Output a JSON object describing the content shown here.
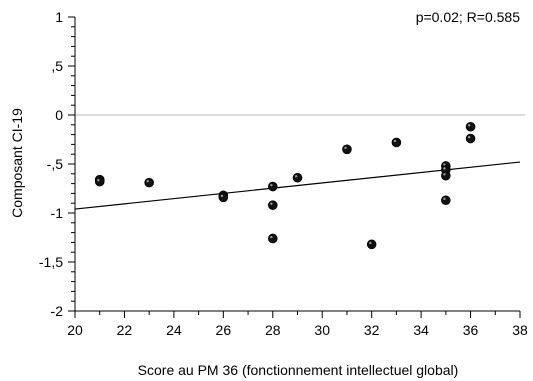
{
  "chart_data": {
    "type": "scatter",
    "annotation": "p=0.02; R=0.585",
    "xlabel": "Score au PM 36 (fonctionnement intellectuel global)",
    "ylabel": "Composant CI-19",
    "xlim": [
      20,
      38
    ],
    "ylim": [
      -2,
      1
    ],
    "x_ticks": [
      20,
      22,
      24,
      26,
      28,
      30,
      32,
      34,
      36,
      38
    ],
    "x_tick_labels": [
      "20",
      "22",
      "24",
      "26",
      "28",
      "30",
      "32",
      "34",
      "36",
      "38"
    ],
    "y_ticks": [
      1,
      0.5,
      0,
      -0.5,
      -1,
      -1.5,
      -2
    ],
    "y_tick_labels": [
      "1",
      ",5",
      "0",
      "-,5",
      "-1",
      "-1,5",
      "-2"
    ],
    "reference_line_y": 0,
    "regression_line": {
      "x": [
        20,
        38
      ],
      "y": [
        -0.96,
        -0.48
      ]
    },
    "points": [
      {
        "x": 21,
        "y": -0.66
      },
      {
        "x": 21,
        "y": -0.68
      },
      {
        "x": 23,
        "y": -0.69
      },
      {
        "x": 26,
        "y": -0.82
      },
      {
        "x": 26,
        "y": -0.84
      },
      {
        "x": 28,
        "y": -0.73
      },
      {
        "x": 28,
        "y": -0.92
      },
      {
        "x": 28,
        "y": -1.26
      },
      {
        "x": 29,
        "y": -0.64
      },
      {
        "x": 31,
        "y": -0.35
      },
      {
        "x": 32,
        "y": -1.32
      },
      {
        "x": 33,
        "y": -0.28
      },
      {
        "x": 35,
        "y": -0.52
      },
      {
        "x": 35,
        "y": -0.56
      },
      {
        "x": 35,
        "y": -0.62
      },
      {
        "x": 35,
        "y": -0.87
      },
      {
        "x": 36,
        "y": -0.12
      },
      {
        "x": 36,
        "y": -0.24
      }
    ]
  }
}
